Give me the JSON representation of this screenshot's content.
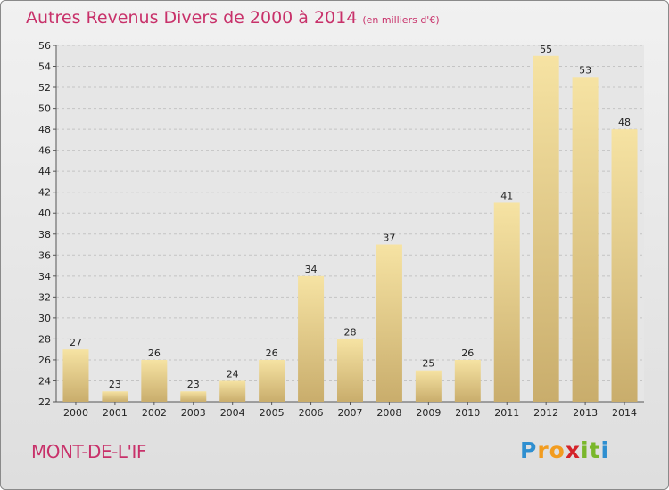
{
  "chart_data": {
    "type": "bar",
    "title": "Autres Revenus Divers de 2000 à 2014",
    "subtitle": "(en milliers d'€)",
    "categories": [
      "2000",
      "2001",
      "2002",
      "2003",
      "2004",
      "2005",
      "2006",
      "2007",
      "2008",
      "2009",
      "2010",
      "2011",
      "2012",
      "2013",
      "2014"
    ],
    "values": [
      27,
      23,
      26,
      23,
      24,
      26,
      34,
      28,
      37,
      25,
      26,
      41,
      55,
      53,
      48
    ],
    "ylim": [
      22,
      56
    ],
    "ytick_step": 2,
    "grid": true,
    "bar_color_light": "#f6e3a3",
    "bar_color_dark": "#c9ad6c"
  },
  "location": "MONT-DE-L'IF",
  "logo": {
    "letters": [
      "P",
      "r",
      "o",
      "x",
      "i",
      "t",
      "i"
    ],
    "colors": [
      "#2f8fd0",
      "#f29c1f",
      "#f29c1f",
      "#d4232a",
      "#7ab72b",
      "#7ab72b",
      "#2f8fd0"
    ]
  }
}
